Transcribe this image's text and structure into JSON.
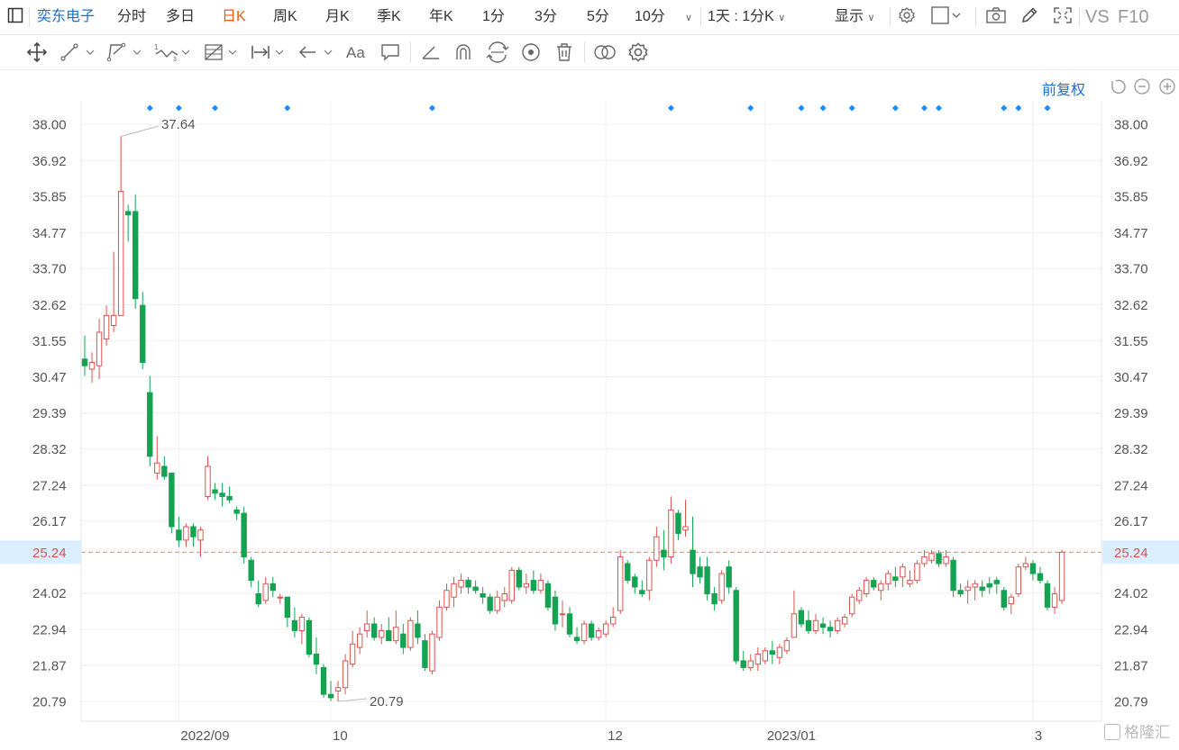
{
  "toolbar": {
    "stock_name": "奕东电子",
    "periods": [
      "分时",
      "多日",
      "日K",
      "周K",
      "月K",
      "季K",
      "年K",
      "1分",
      "3分",
      "5分",
      "10分"
    ],
    "active_period": "日K",
    "interval_select": "1天 : 1分K",
    "display_label": "显示",
    "vs_label": "VS",
    "f10_label": "F10"
  },
  "adjust_label": "前复权",
  "icons": {
    "row1": [
      "sidebar-toggle-icon",
      "chevron-down-icon",
      "gear-icon",
      "square-icon",
      "camera-icon",
      "pencil-icon",
      "fullscreen-icon"
    ],
    "row2": [
      "move-icon",
      "line-icon",
      "polyline-icon",
      "wave-icon",
      "fibonacci-icon",
      "measure-icon",
      "arrow-icon",
      "text-icon",
      "comment-icon",
      "angle-icon",
      "magnet-icon",
      "cycle-icon",
      "eye-icon",
      "trash-icon",
      "link-icon",
      "settings-icon"
    ],
    "controls": [
      "undo-icon",
      "zoom-out-icon",
      "zoom-in-icon"
    ]
  },
  "watermark": "格隆汇",
  "chart_data": {
    "type": "candlestick",
    "y_ticks": [
      "38.00",
      "36.92",
      "35.85",
      "34.77",
      "33.70",
      "32.62",
      "31.55",
      "30.47",
      "29.39",
      "28.32",
      "27.24",
      "26.17",
      "25.24",
      "24.02",
      "22.94",
      "21.87",
      "20.79"
    ],
    "y_range": [
      20.2,
      38.7
    ],
    "x_ticks": [
      {
        "label": "2022/09",
        "index": 13
      },
      {
        "label": "10",
        "index": 34
      },
      {
        "label": "12",
        "index": 72
      },
      {
        "label": "2023/01",
        "index": 94
      },
      {
        "label": "3",
        "index": 131
      }
    ],
    "current_price": "25.24",
    "max_label": "37.64",
    "max_index": 5,
    "min_label": "20.79",
    "min_index": 35,
    "up_color": "#d9534f",
    "down_color": "#14a352",
    "marker_color": "#1a8cff",
    "event_markers": [
      9,
      13,
      18,
      28,
      48,
      81,
      92,
      99,
      102,
      106,
      112,
      116,
      118,
      127,
      129,
      133
    ],
    "ohlc": [
      [
        31.0,
        31.7,
        30.5,
        30.8
      ],
      [
        30.7,
        31.2,
        30.3,
        30.9
      ],
      [
        30.8,
        32.2,
        30.4,
        31.8
      ],
      [
        31.6,
        32.6,
        31.4,
        32.3
      ],
      [
        32.0,
        34.2,
        31.8,
        32.3
      ],
      [
        32.3,
        37.64,
        32.3,
        36.0
      ],
      [
        35.4,
        35.6,
        34.5,
        35.3
      ],
      [
        35.4,
        35.9,
        32.5,
        32.8
      ],
      [
        32.6,
        33.0,
        30.7,
        30.9
      ],
      [
        30.0,
        30.5,
        27.8,
        28.1
      ],
      [
        27.6,
        28.7,
        27.4,
        27.9
      ],
      [
        27.8,
        28.1,
        27.4,
        27.5
      ],
      [
        27.6,
        27.6,
        25.8,
        26.0
      ],
      [
        25.9,
        26.3,
        25.4,
        25.6
      ],
      [
        25.6,
        26.1,
        25.4,
        26.0
      ],
      [
        26.0,
        26.1,
        25.4,
        25.7
      ],
      [
        25.6,
        26.0,
        25.1,
        25.9
      ],
      [
        26.9,
        28.1,
        26.8,
        27.8
      ],
      [
        27.1,
        27.3,
        26.8,
        27.0
      ],
      [
        27.0,
        27.3,
        26.6,
        26.9
      ],
      [
        26.9,
        27.2,
        26.7,
        26.8
      ],
      [
        26.5,
        26.6,
        26.2,
        26.4
      ],
      [
        26.4,
        26.6,
        24.9,
        25.1
      ],
      [
        25.0,
        25.1,
        24.2,
        24.4
      ],
      [
        24.0,
        24.4,
        23.6,
        23.7
      ],
      [
        23.8,
        24.5,
        23.7,
        24.3
      ],
      [
        24.3,
        24.5,
        23.9,
        24.1
      ],
      [
        23.9,
        24.0,
        23.7,
        23.9
      ],
      [
        23.9,
        23.9,
        23.0,
        23.3
      ],
      [
        23.2,
        23.6,
        22.7,
        22.9
      ],
      [
        22.9,
        23.4,
        22.5,
        23.3
      ],
      [
        23.2,
        23.3,
        22.1,
        22.2
      ],
      [
        22.2,
        22.7,
        21.6,
        21.9
      ],
      [
        21.8,
        21.9,
        20.9,
        21.0
      ],
      [
        21.0,
        21.4,
        20.8,
        20.9
      ],
      [
        21.1,
        21.4,
        20.79,
        21.2
      ],
      [
        21.2,
        22.2,
        21.0,
        22.0
      ],
      [
        21.9,
        22.9,
        21.8,
        22.5
      ],
      [
        22.4,
        23.0,
        22.2,
        22.8
      ],
      [
        22.9,
        23.5,
        22.7,
        23.1
      ],
      [
        23.1,
        23.3,
        22.6,
        22.7
      ],
      [
        22.7,
        23.1,
        22.5,
        22.9
      ],
      [
        22.9,
        23.3,
        22.6,
        22.6
      ],
      [
        22.6,
        23.5,
        22.5,
        23.0
      ],
      [
        22.8,
        23.1,
        22.2,
        22.4
      ],
      [
        22.4,
        23.3,
        22.3,
        23.2
      ],
      [
        23.1,
        23.5,
        22.5,
        22.7
      ],
      [
        22.6,
        22.8,
        21.7,
        21.8
      ],
      [
        21.7,
        22.9,
        21.6,
        22.8
      ],
      [
        22.7,
        23.8,
        22.6,
        23.6
      ],
      [
        23.6,
        24.3,
        23.5,
        24.1
      ],
      [
        23.9,
        24.5,
        23.6,
        24.3
      ],
      [
        24.2,
        24.6,
        24.0,
        24.4
      ],
      [
        24.4,
        24.5,
        24.0,
        24.2
      ],
      [
        24.2,
        24.4,
        24.0,
        24.1
      ],
      [
        24.0,
        24.2,
        23.7,
        23.9
      ],
      [
        23.9,
        24.0,
        23.4,
        23.5
      ],
      [
        23.5,
        24.1,
        23.4,
        23.9
      ],
      [
        23.8,
        24.2,
        23.6,
        24.0
      ],
      [
        23.8,
        24.8,
        23.7,
        24.7
      ],
      [
        24.7,
        24.8,
        24.1,
        24.2
      ],
      [
        24.2,
        24.6,
        24.0,
        24.3
      ],
      [
        24.4,
        24.7,
        24.0,
        24.1
      ],
      [
        24.1,
        24.6,
        24.0,
        24.4
      ],
      [
        24.3,
        24.4,
        23.5,
        23.6
      ],
      [
        23.9,
        24.1,
        22.9,
        23.1
      ],
      [
        23.4,
        23.8,
        23.0,
        23.4
      ],
      [
        23.4,
        23.6,
        22.7,
        22.8
      ],
      [
        22.7,
        23.0,
        22.5,
        22.6
      ],
      [
        22.6,
        23.2,
        22.5,
        23.1
      ],
      [
        23.1,
        23.2,
        22.6,
        22.7
      ],
      [
        22.7,
        23.0,
        22.6,
        22.9
      ],
      [
        22.8,
        23.2,
        22.7,
        23.1
      ],
      [
        23.1,
        23.6,
        23.0,
        23.3
      ],
      [
        23.5,
        25.3,
        23.4,
        25.1
      ],
      [
        24.9,
        25.0,
        24.3,
        24.4
      ],
      [
        24.5,
        24.6,
        24.0,
        24.2
      ],
      [
        24.1,
        24.4,
        23.9,
        24.0
      ],
      [
        24.1,
        25.1,
        23.8,
        25.0
      ],
      [
        25.0,
        26.0,
        24.8,
        25.7
      ],
      [
        25.3,
        25.9,
        24.7,
        25.1
      ],
      [
        25.1,
        26.9,
        24.9,
        26.5
      ],
      [
        26.4,
        26.5,
        25.6,
        25.8
      ],
      [
        25.9,
        26.8,
        25.7,
        26.0
      ],
      [
        25.3,
        26.3,
        24.2,
        24.6
      ],
      [
        24.8,
        25.1,
        24.3,
        24.5
      ],
      [
        24.8,
        25.1,
        23.8,
        24.0
      ],
      [
        24.0,
        24.2,
        23.5,
        23.7
      ],
      [
        23.8,
        24.7,
        23.7,
        24.6
      ],
      [
        24.8,
        25.0,
        24.0,
        24.2
      ],
      [
        24.1,
        24.2,
        21.9,
        22.0
      ],
      [
        22.0,
        22.3,
        21.7,
        21.8
      ],
      [
        21.8,
        22.2,
        21.7,
        22.0
      ],
      [
        21.9,
        22.4,
        21.7,
        22.2
      ],
      [
        22.0,
        22.4,
        21.9,
        22.3
      ],
      [
        22.3,
        22.6,
        21.9,
        22.2
      ],
      [
        22.1,
        22.5,
        21.9,
        22.4
      ],
      [
        22.3,
        22.7,
        22.2,
        22.6
      ],
      [
        22.7,
        24.1,
        22.7,
        23.4
      ],
      [
        23.5,
        23.6,
        23.0,
        23.1
      ],
      [
        23.2,
        23.5,
        22.8,
        22.9
      ],
      [
        22.9,
        23.4,
        22.8,
        23.2
      ],
      [
        23.1,
        23.3,
        22.8,
        23.0
      ],
      [
        23.0,
        23.2,
        22.7,
        22.9
      ],
      [
        22.9,
        23.3,
        22.8,
        23.2
      ],
      [
        23.1,
        23.4,
        23.0,
        23.3
      ],
      [
        23.4,
        24.0,
        23.3,
        23.9
      ],
      [
        23.8,
        24.2,
        23.7,
        24.1
      ],
      [
        24.0,
        24.5,
        23.9,
        24.4
      ],
      [
        24.4,
        24.5,
        24.1,
        24.2
      ],
      [
        24.1,
        24.4,
        23.8,
        24.3
      ],
      [
        24.3,
        24.7,
        24.1,
        24.6
      ],
      [
        24.5,
        24.8,
        24.2,
        24.4
      ],
      [
        24.5,
        24.9,
        24.2,
        24.8
      ],
      [
        24.3,
        24.7,
        24.2,
        24.4
      ],
      [
        24.4,
        25.0,
        24.3,
        24.9
      ],
      [
        24.9,
        25.3,
        24.8,
        25.1
      ],
      [
        25.0,
        25.3,
        24.9,
        25.2
      ],
      [
        25.2,
        25.3,
        24.8,
        24.9
      ],
      [
        24.9,
        25.3,
        24.8,
        25.1
      ],
      [
        25.0,
        25.1,
        23.9,
        24.1
      ],
      [
        24.1,
        24.3,
        23.9,
        24.0
      ],
      [
        24.1,
        24.4,
        23.7,
        24.2
      ],
      [
        24.2,
        24.4,
        23.8,
        24.3
      ],
      [
        24.2,
        24.4,
        23.9,
        24.1
      ],
      [
        24.3,
        24.5,
        24.0,
        24.2
      ],
      [
        24.4,
        24.5,
        24.0,
        24.3
      ],
      [
        24.1,
        24.2,
        23.5,
        23.6
      ],
      [
        23.7,
        24.0,
        23.4,
        23.9
      ],
      [
        24.0,
        24.9,
        23.9,
        24.8
      ],
      [
        24.8,
        25.1,
        24.7,
        24.9
      ],
      [
        24.9,
        25.0,
        24.4,
        24.6
      ],
      [
        24.6,
        24.8,
        24.3,
        24.4
      ],
      [
        24.3,
        24.4,
        23.5,
        23.6
      ],
      [
        23.6,
        24.2,
        23.4,
        24.0
      ],
      [
        23.8,
        25.3,
        23.7,
        25.24
      ]
    ]
  }
}
